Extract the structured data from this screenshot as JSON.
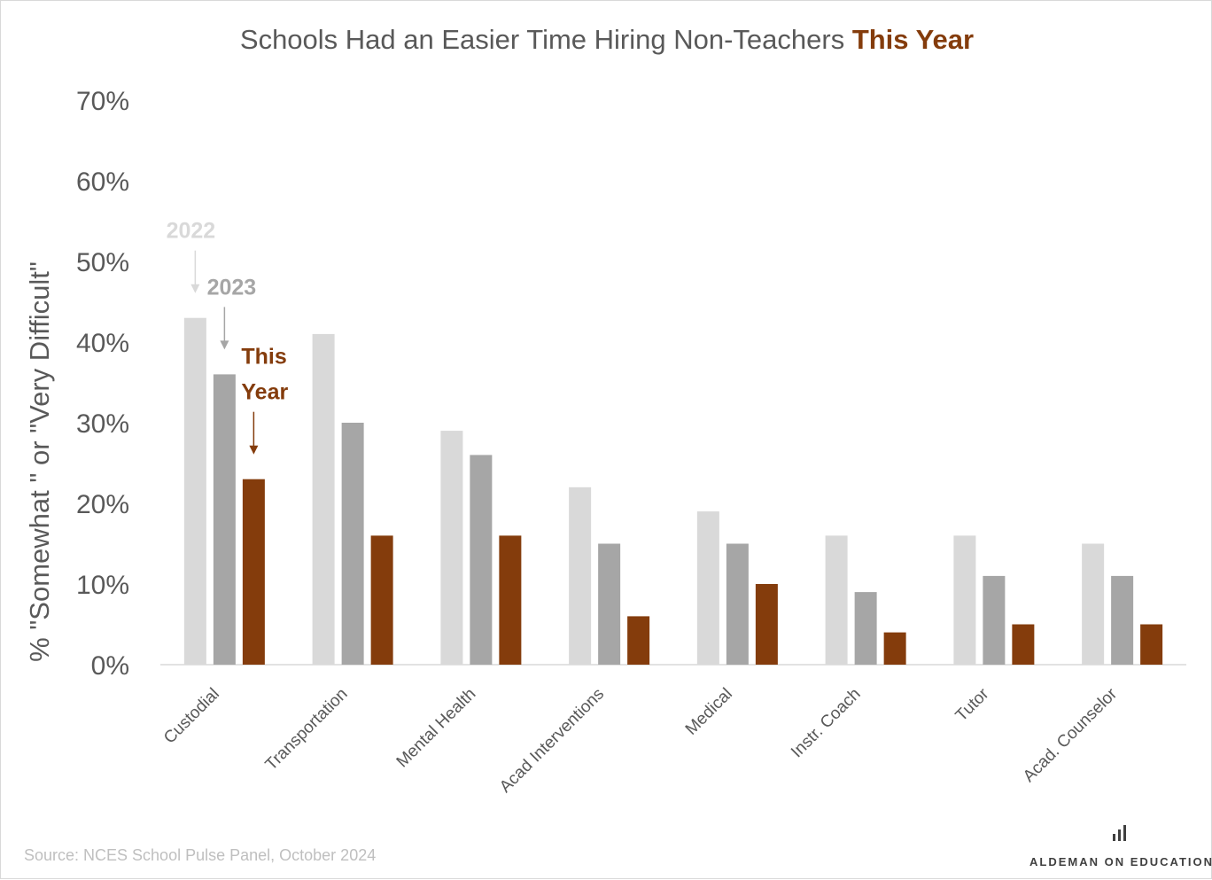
{
  "chart_data": {
    "type": "bar",
    "title": {
      "prefix": "Schools Had an Easier Time Hiring Non-Teachers ",
      "emphasis": "This Year"
    },
    "xlabel": "",
    "ylabel": "% \"Somewhat \" or \"Very Difficult\"",
    "ylim": [
      0,
      70
    ],
    "yticks": [
      "0%",
      "10%",
      "20%",
      "30%",
      "40%",
      "50%",
      "60%",
      "70%"
    ],
    "grid": false,
    "legend": "none",
    "categories": [
      "Custodial",
      "Transportation",
      "Mental Health",
      "Acad Interventions",
      "Medical",
      "Instr. Coach",
      "Tutor",
      "Acad. Counselor"
    ],
    "series": [
      {
        "name": "2022",
        "color": "#d9d9d9",
        "values": [
          43,
          41,
          29,
          22,
          19,
          16,
          16,
          15
        ]
      },
      {
        "name": "2023",
        "color": "#a6a6a6",
        "values": [
          36,
          30,
          26,
          15,
          15,
          9,
          11,
          11
        ]
      },
      {
        "name": "This Year",
        "color": "#843c0c",
        "values": [
          23,
          16,
          16,
          6,
          10,
          4,
          5,
          5
        ]
      }
    ],
    "annotations": [
      {
        "text_lines": [
          "2022"
        ],
        "color": "#d9d9d9",
        "series_index": 0
      },
      {
        "text_lines": [
          "2023"
        ],
        "color": "#a6a6a6",
        "series_index": 1
      },
      {
        "text_lines": [
          "This",
          "Year"
        ],
        "color": "#843c0c",
        "series_index": 2
      }
    ]
  },
  "footer": {
    "source": "Source: NCES School Pulse Panel, October 2024",
    "brand": "ALDEMAN ON EDUCATION",
    "brand_icon": "bar-chart-icon"
  }
}
